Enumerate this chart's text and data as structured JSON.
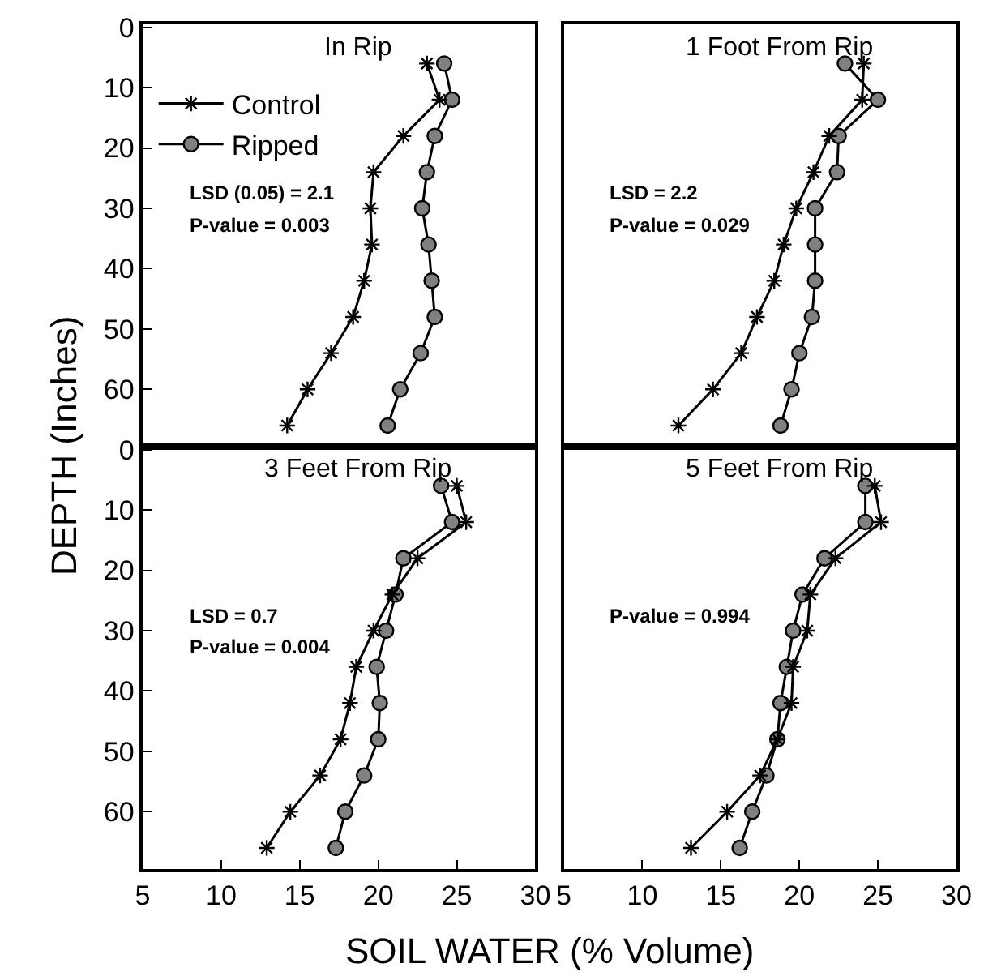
{
  "chart_data": [
    {
      "type": "line",
      "title": "In Rip",
      "ylabel": "DEPTH (Inches)",
      "xlim": [
        5,
        30
      ],
      "ylim": [
        69.5,
        -0.5
      ],
      "yticks": [
        0,
        10,
        20,
        30,
        40,
        50,
        60
      ],
      "tick_labels": "y",
      "legend": "top left",
      "annotations": [
        "LSD (0.05) = 2.1",
        "P-value = 0.003"
      ],
      "series": [
        {
          "name": "Control",
          "color": "#000000",
          "marker": "cross",
          "x": [
            23.1,
            23.9,
            21.6,
            19.7,
            19.5,
            19.6,
            19.1,
            18.4,
            17.0,
            15.5,
            14.2
          ],
          "values": [
            6,
            12,
            18,
            24,
            30,
            36,
            42,
            48,
            54,
            60,
            66
          ]
        },
        {
          "name": "Ripped",
          "color": "#808080",
          "marker": "circle",
          "x": [
            24.2,
            24.7,
            23.6,
            23.1,
            22.8,
            23.2,
            23.4,
            23.6,
            22.7,
            21.4,
            20.6
          ],
          "values": [
            6,
            12,
            18,
            24,
            30,
            36,
            42,
            48,
            54,
            60,
            66
          ]
        }
      ]
    },
    {
      "type": "line",
      "title": "1 Foot From Rip",
      "xlim": [
        5,
        30
      ],
      "ylim": [
        69.5,
        -0.5
      ],
      "tick_labels": false,
      "annotations": [
        "LSD = 2.2",
        "P-value = 0.029"
      ],
      "series": [
        {
          "color": "#000000",
          "marker": "cross",
          "x": [
            24.1,
            24.0,
            21.9,
            20.9,
            19.8,
            19.0,
            18.4,
            17.3,
            16.3,
            14.5,
            12.3
          ],
          "values": [
            6,
            12,
            18,
            24,
            30,
            36,
            42,
            48,
            54,
            60,
            66
          ]
        },
        {
          "color": "#808080",
          "marker": "circle",
          "x": [
            22.9,
            25.0,
            22.5,
            22.4,
            21.0,
            21.0,
            21.0,
            20.8,
            20.0,
            19.5,
            18.8
          ],
          "values": [
            6,
            12,
            18,
            24,
            30,
            36,
            42,
            48,
            54,
            60,
            66
          ]
        }
      ]
    },
    {
      "type": "line",
      "title": "3 Feet From Rip",
      "xlabel": "SOIL WATER (% Volume)",
      "xlim": [
        5,
        30
      ],
      "xticks": [
        5,
        10,
        15,
        20,
        25,
        30
      ],
      "ylim": [
        69.5,
        -0.5
      ],
      "yticks": [
        0,
        10,
        20,
        30,
        40,
        50,
        60
      ],
      "annotations": [
        "LSD = 0.7",
        "P-value = 0.004"
      ],
      "series": [
        {
          "color": "#000000",
          "marker": "cross",
          "x": [
            25.0,
            25.6,
            22.5,
            20.9,
            19.7,
            18.6,
            18.2,
            17.6,
            16.3,
            14.4,
            12.9
          ],
          "values": [
            6,
            12,
            18,
            24,
            30,
            36,
            42,
            48,
            54,
            60,
            66
          ]
        },
        {
          "color": "#808080",
          "marker": "circle",
          "x": [
            24.0,
            24.7,
            21.6,
            21.1,
            20.5,
            19.9,
            20.1,
            20.0,
            19.1,
            17.9,
            17.3
          ],
          "values": [
            6,
            12,
            18,
            24,
            30,
            36,
            42,
            48,
            54,
            60,
            66
          ]
        }
      ]
    },
    {
      "type": "line",
      "title": "5 Feet From Rip",
      "xlim": [
        5,
        30
      ],
      "xticks": [
        5,
        10,
        15,
        20,
        25,
        30
      ],
      "ylim": [
        69.5,
        -0.5
      ],
      "tick_labels": "x",
      "annotations": [
        "P-value = 0.994"
      ],
      "series": [
        {
          "color": "#000000",
          "marker": "cross",
          "x": [
            24.8,
            25.2,
            22.3,
            20.7,
            20.5,
            19.6,
            19.5,
            18.6,
            17.5,
            15.4,
            13.1
          ],
          "values": [
            6,
            12,
            18,
            24,
            30,
            36,
            42,
            48,
            54,
            60,
            66
          ]
        },
        {
          "color": "#808080",
          "marker": "circle",
          "x": [
            24.2,
            24.2,
            21.6,
            20.2,
            19.6,
            19.2,
            18.8,
            18.6,
            17.9,
            17.0,
            16.2
          ],
          "values": [
            6,
            12,
            18,
            24,
            30,
            36,
            42,
            48,
            54,
            60,
            66
          ]
        }
      ]
    }
  ]
}
